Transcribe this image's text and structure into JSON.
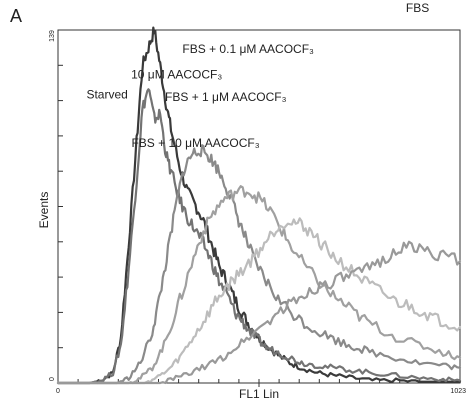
{
  "panel_label": "A",
  "chart_data": {
    "type": "line",
    "title": "",
    "xlabel": "FL1 Lin",
    "ylabel": "Events",
    "xlim": [
      0,
      1023
    ],
    "ylim": [
      0,
      139
    ],
    "xticks": [
      {
        "value": 0,
        "label": "0"
      },
      {
        "value": 1023,
        "label": "1023"
      }
    ],
    "yticks": [
      {
        "value": 0,
        "label": "0"
      },
      {
        "value": 139,
        "label": "139"
      }
    ],
    "grid": false,
    "legend": "none (series labelled directly on plot)",
    "series": [
      {
        "name": "10 μM AACOCF₃",
        "color": "#3a3a3a",
        "label_at": [
          302,
          120
        ],
        "x": [
          0,
          80,
          110,
          140,
          160,
          180,
          200,
          215,
          230,
          245,
          260,
          275,
          290,
          310,
          330,
          350,
          370,
          390,
          410,
          430,
          450,
          470,
          490,
          510,
          530,
          560,
          590,
          620,
          660,
          700,
          750,
          800,
          860,
          920,
          980,
          1023
        ],
        "values": [
          0,
          0,
          1,
          4,
          18,
          55,
          95,
          125,
          132,
          139,
          125,
          110,
          98,
          85,
          75,
          70,
          64,
          55,
          46,
          40,
          33,
          27,
          22,
          18,
          15,
          11,
          8,
          6,
          4,
          3,
          2,
          1,
          1,
          0.5,
          0.5,
          0.5
        ]
      },
      {
        "name": "Starved",
        "color": "#737373",
        "label_at": [
          125,
          112
        ],
        "x": [
          0,
          80,
          110,
          140,
          160,
          180,
          200,
          215,
          230,
          245,
          260,
          275,
          290,
          310,
          330,
          350,
          370,
          390,
          410,
          430,
          450,
          470,
          490,
          510,
          530,
          560,
          590,
          620,
          660,
          700,
          750,
          800,
          860,
          920,
          980,
          1023
        ],
        "values": [
          0,
          0,
          1,
          4,
          15,
          45,
          80,
          108,
          116,
          104,
          106,
          90,
          82,
          72,
          65,
          60,
          55,
          48,
          40,
          35,
          28,
          24,
          20,
          17,
          14,
          12,
          10,
          8,
          7,
          6,
          5,
          4,
          3,
          2,
          1.5,
          1
        ]
      },
      {
        "name": "FBS + 10 μM AACOCF₃",
        "color": "#8a8a8a",
        "label_at": [
          350,
          93
        ],
        "x": [
          0,
          150,
          180,
          210,
          240,
          260,
          280,
          300,
          320,
          340,
          360,
          380,
          400,
          420,
          440,
          460,
          480,
          500,
          530,
          560,
          600,
          640,
          680,
          720,
          760,
          800,
          860,
          920,
          980,
          1023
        ],
        "values": [
          0,
          0,
          2,
          8,
          20,
          35,
          52,
          70,
          84,
          90,
          92,
          90,
          86,
          80,
          73,
          64,
          56,
          48,
          40,
          33,
          27,
          22,
          19,
          16,
          14,
          12,
          10,
          8,
          7,
          6
        ]
      },
      {
        "name": "FBS + 1 μM AACOCF₃",
        "color": "#a0a0a0",
        "label_at": [
          427,
          111
        ],
        "x": [
          0,
          180,
          210,
          240,
          270,
          300,
          330,
          360,
          390,
          420,
          450,
          480,
          510,
          540,
          570,
          600,
          640,
          680,
          720,
          760,
          800,
          860,
          920,
          980,
          1023
        ],
        "values": [
          0,
          0,
          2,
          6,
          15,
          28,
          42,
          56,
          66,
          72,
          75,
          76,
          73,
          68,
          60,
          52,
          44,
          37,
          32,
          27,
          23,
          18,
          15,
          12,
          10
        ]
      },
      {
        "name": "FBS + 0.1 μM AACOCF₃",
        "color": "#bcbcbc",
        "label_at": [
          484,
          130
        ],
        "x": [
          0,
          220,
          250,
          280,
          310,
          340,
          370,
          400,
          430,
          460,
          490,
          520,
          550,
          580,
          610,
          640,
          670,
          700,
          740,
          780,
          820,
          860,
          900,
          940,
          980,
          1023
        ],
        "values": [
          0,
          0,
          2,
          5,
          10,
          17,
          24,
          32,
          38,
          43,
          48,
          54,
          60,
          64,
          63,
          60,
          55,
          50,
          45,
          40,
          36,
          32,
          30,
          27,
          24,
          22
        ]
      },
      {
        "name": "FBS",
        "color": "#999999",
        "label_at": [
          915,
          146
        ],
        "x": [
          0,
          260,
          300,
          340,
          380,
          420,
          460,
          500,
          540,
          580,
          620,
          660,
          700,
          740,
          780,
          820,
          860,
          900,
          940,
          980,
          1023
        ],
        "values": [
          0,
          0,
          2,
          4,
          7,
          10,
          15,
          20,
          25,
          30,
          34,
          38,
          40,
          42,
          44,
          48,
          52,
          54,
          52,
          50,
          48
        ]
      }
    ]
  }
}
